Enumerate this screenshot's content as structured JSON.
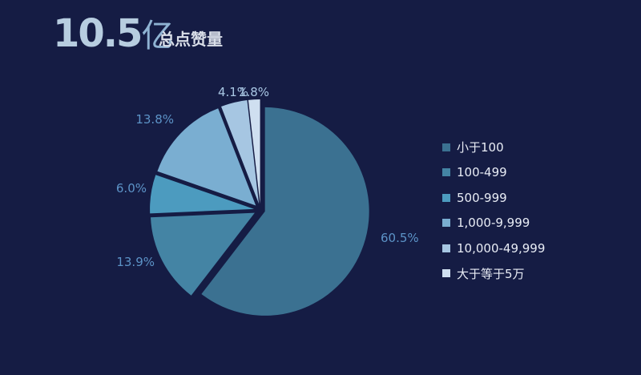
{
  "header": {
    "value": "10.5",
    "unit": "亿",
    "title": "总点赞量"
  },
  "colors": {
    "background": "#151c44",
    "title_value": "#b7cde0",
    "title_unit": "#8fb3d3",
    "title_text": "#d9dee8"
  },
  "chart_data": {
    "type": "pie",
    "title": "总点赞量",
    "legend_position": "right",
    "slices": [
      {
        "label": "小于100",
        "value": 60.5,
        "value_label": "60.5%",
        "color": "#3b7191"
      },
      {
        "label": "100-499",
        "value": 13.9,
        "value_label": "13.9%",
        "color": "#4484a4"
      },
      {
        "label": "500-999",
        "value": 6.0,
        "value_label": "6.0%",
        "color": "#4c9bbf"
      },
      {
        "label": "1,000-9,999",
        "value": 13.8,
        "value_label": "13.8%",
        "color": "#7aaed1"
      },
      {
        "label": "10,000-49,999",
        "value": 4.1,
        "value_label": "4.1%",
        "color": "#a6c6e2"
      },
      {
        "label": "大于等于5万",
        "value": 1.8,
        "value_label": "1.8%",
        "color": "#cfdff0"
      }
    ],
    "label_colors": {
      "outer": "#5c93c7",
      "top": "#a9c7e4"
    }
  }
}
